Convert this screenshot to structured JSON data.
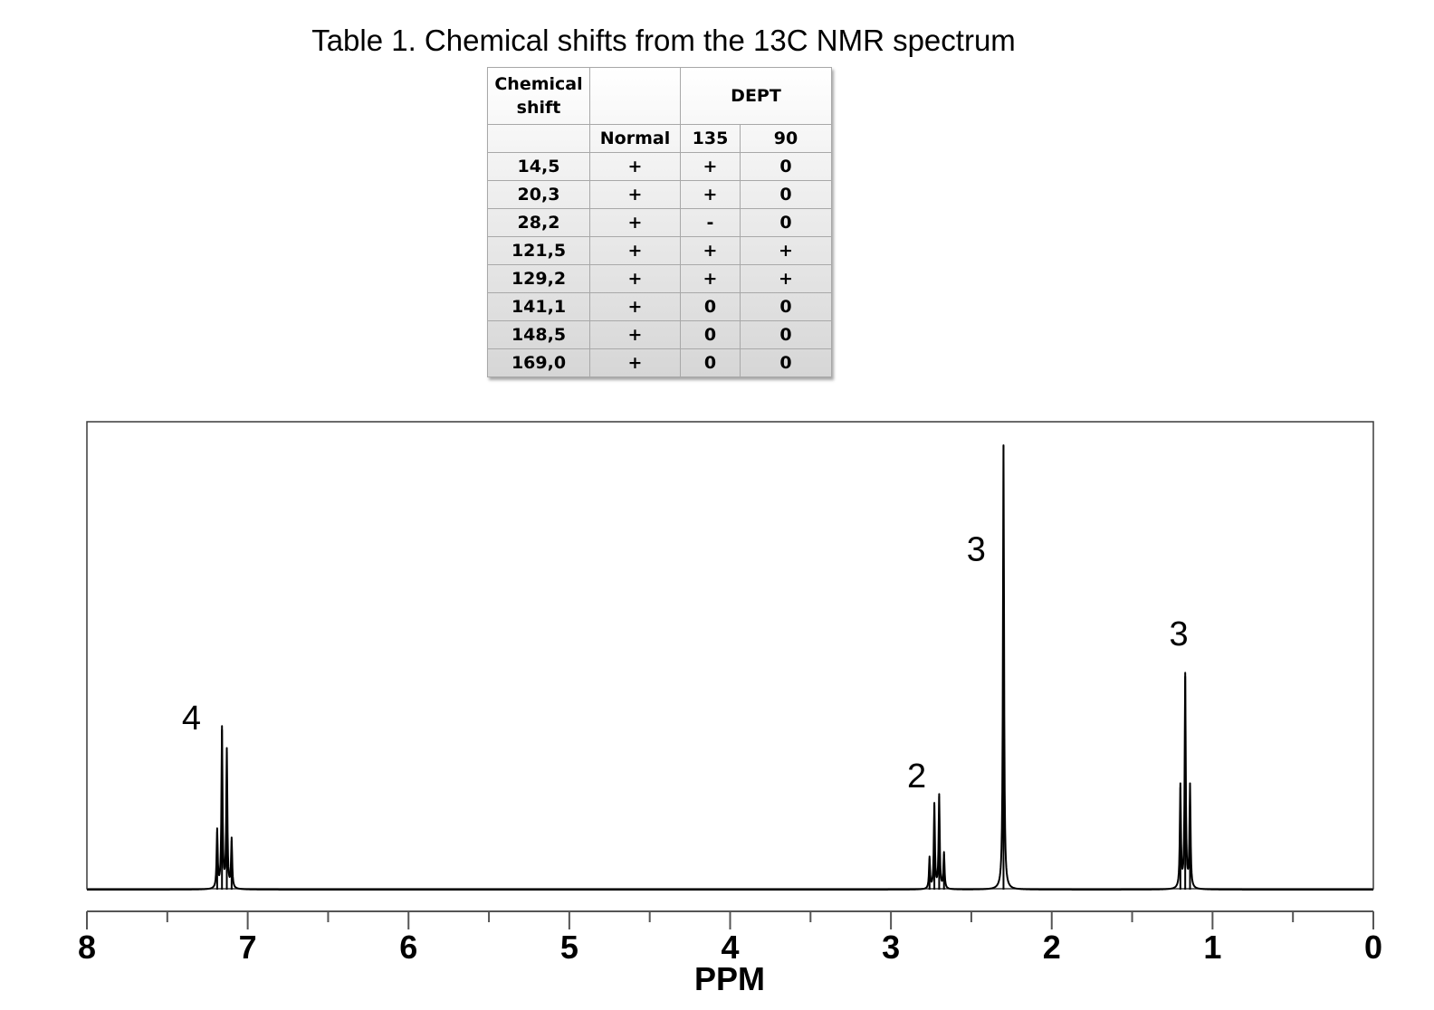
{
  "title": "Table 1. Chemical shifts from the 13C NMR spectrum",
  "table": {
    "header": {
      "shift": "Chemical shift",
      "normal": "Normal",
      "dept": "DEPT",
      "dept135": "135",
      "dept90": "90"
    },
    "rows": [
      {
        "shift": "14,5",
        "normal": "+",
        "d135": "+",
        "d90": "0"
      },
      {
        "shift": "20,3",
        "normal": "+",
        "d135": "+",
        "d90": "0"
      },
      {
        "shift": "28,2",
        "normal": "+",
        "d135": "-",
        "d90": "0"
      },
      {
        "shift": "121,5",
        "normal": "+",
        "d135": "+",
        "d90": "+"
      },
      {
        "shift": "129,2",
        "normal": "+",
        "d135": "+",
        "d90": "+"
      },
      {
        "shift": "141,1",
        "normal": "+",
        "d135": "0",
        "d90": "0"
      },
      {
        "shift": "148,5",
        "normal": "+",
        "d135": "0",
        "d90": "0"
      },
      {
        "shift": "169,0",
        "normal": "+",
        "d135": "0",
        "d90": "0"
      }
    ]
  },
  "chart_data": {
    "type": "line",
    "xlabel": "PPM",
    "ylabel": "",
    "xlim": [
      8,
      0
    ],
    "x_reversed": true,
    "xticks": [
      "8",
      "7",
      "6",
      "5",
      "4",
      "3",
      "2",
      "1",
      "0"
    ],
    "minor_tick_step": 0.5,
    "grid": false,
    "peaks": [
      {
        "ppm": 7.19,
        "height": 0.13
      },
      {
        "ppm": 7.16,
        "height": 0.36
      },
      {
        "ppm": 7.13,
        "height": 0.31
      },
      {
        "ppm": 7.1,
        "height": 0.11
      },
      {
        "ppm": 2.76,
        "height": 0.07
      },
      {
        "ppm": 2.73,
        "height": 0.19
      },
      {
        "ppm": 2.7,
        "height": 0.21
      },
      {
        "ppm": 2.67,
        "height": 0.08
      },
      {
        "ppm": 2.3,
        "height": 1.0
      },
      {
        "ppm": 1.2,
        "height": 0.23
      },
      {
        "ppm": 1.17,
        "height": 0.48
      },
      {
        "ppm": 1.14,
        "height": 0.23
      }
    ],
    "annotations": [
      {
        "text": "4",
        "ppm": 7.35,
        "height": 0.36
      },
      {
        "text": "2",
        "ppm": 2.84,
        "height": 0.23
      },
      {
        "text": "3",
        "ppm": 2.47,
        "height": 0.74
      },
      {
        "text": "3",
        "ppm": 1.21,
        "height": 0.55
      }
    ]
  }
}
